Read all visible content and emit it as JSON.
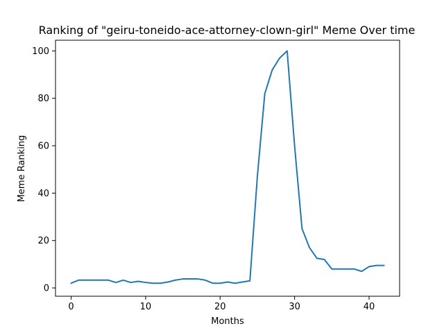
{
  "chart_data": {
    "type": "line",
    "title": "Ranking of \"geiru-toneido-ace-attorney-clown-girl\" Meme Over time",
    "xlabel": "Months",
    "ylabel": "Meme Ranking",
    "xlim": [
      -2.1,
      44.1
    ],
    "ylim": [
      -3.5,
      104.5
    ],
    "xticks": [
      0,
      10,
      20,
      30,
      40
    ],
    "yticks": [
      0,
      20,
      40,
      60,
      80,
      100
    ],
    "grid": false,
    "series": [
      {
        "name": "Meme Ranking",
        "color": "#1f77b4",
        "x": [
          0,
          1,
          2,
          3,
          4,
          5,
          6,
          7,
          8,
          9,
          10,
          11,
          12,
          13,
          14,
          15,
          16,
          17,
          18,
          19,
          20,
          21,
          22,
          23,
          24,
          25,
          26,
          27,
          28,
          29,
          30,
          31,
          32,
          33,
          34,
          35,
          36,
          37,
          38,
          39,
          40,
          41,
          42
        ],
        "y": [
          2,
          3.3,
          3.3,
          3.3,
          3.3,
          3.3,
          2.3,
          3.3,
          2.3,
          2.8,
          2.3,
          2,
          2,
          2.5,
          3.3,
          3.8,
          3.8,
          3.8,
          3.3,
          2,
          2,
          2.5,
          2,
          2.5,
          3,
          47,
          82,
          92,
          97,
          100,
          60,
          25,
          17,
          12.5,
          12,
          8,
          8,
          8,
          8,
          7,
          9,
          9.5,
          9.5
        ]
      }
    ]
  }
}
